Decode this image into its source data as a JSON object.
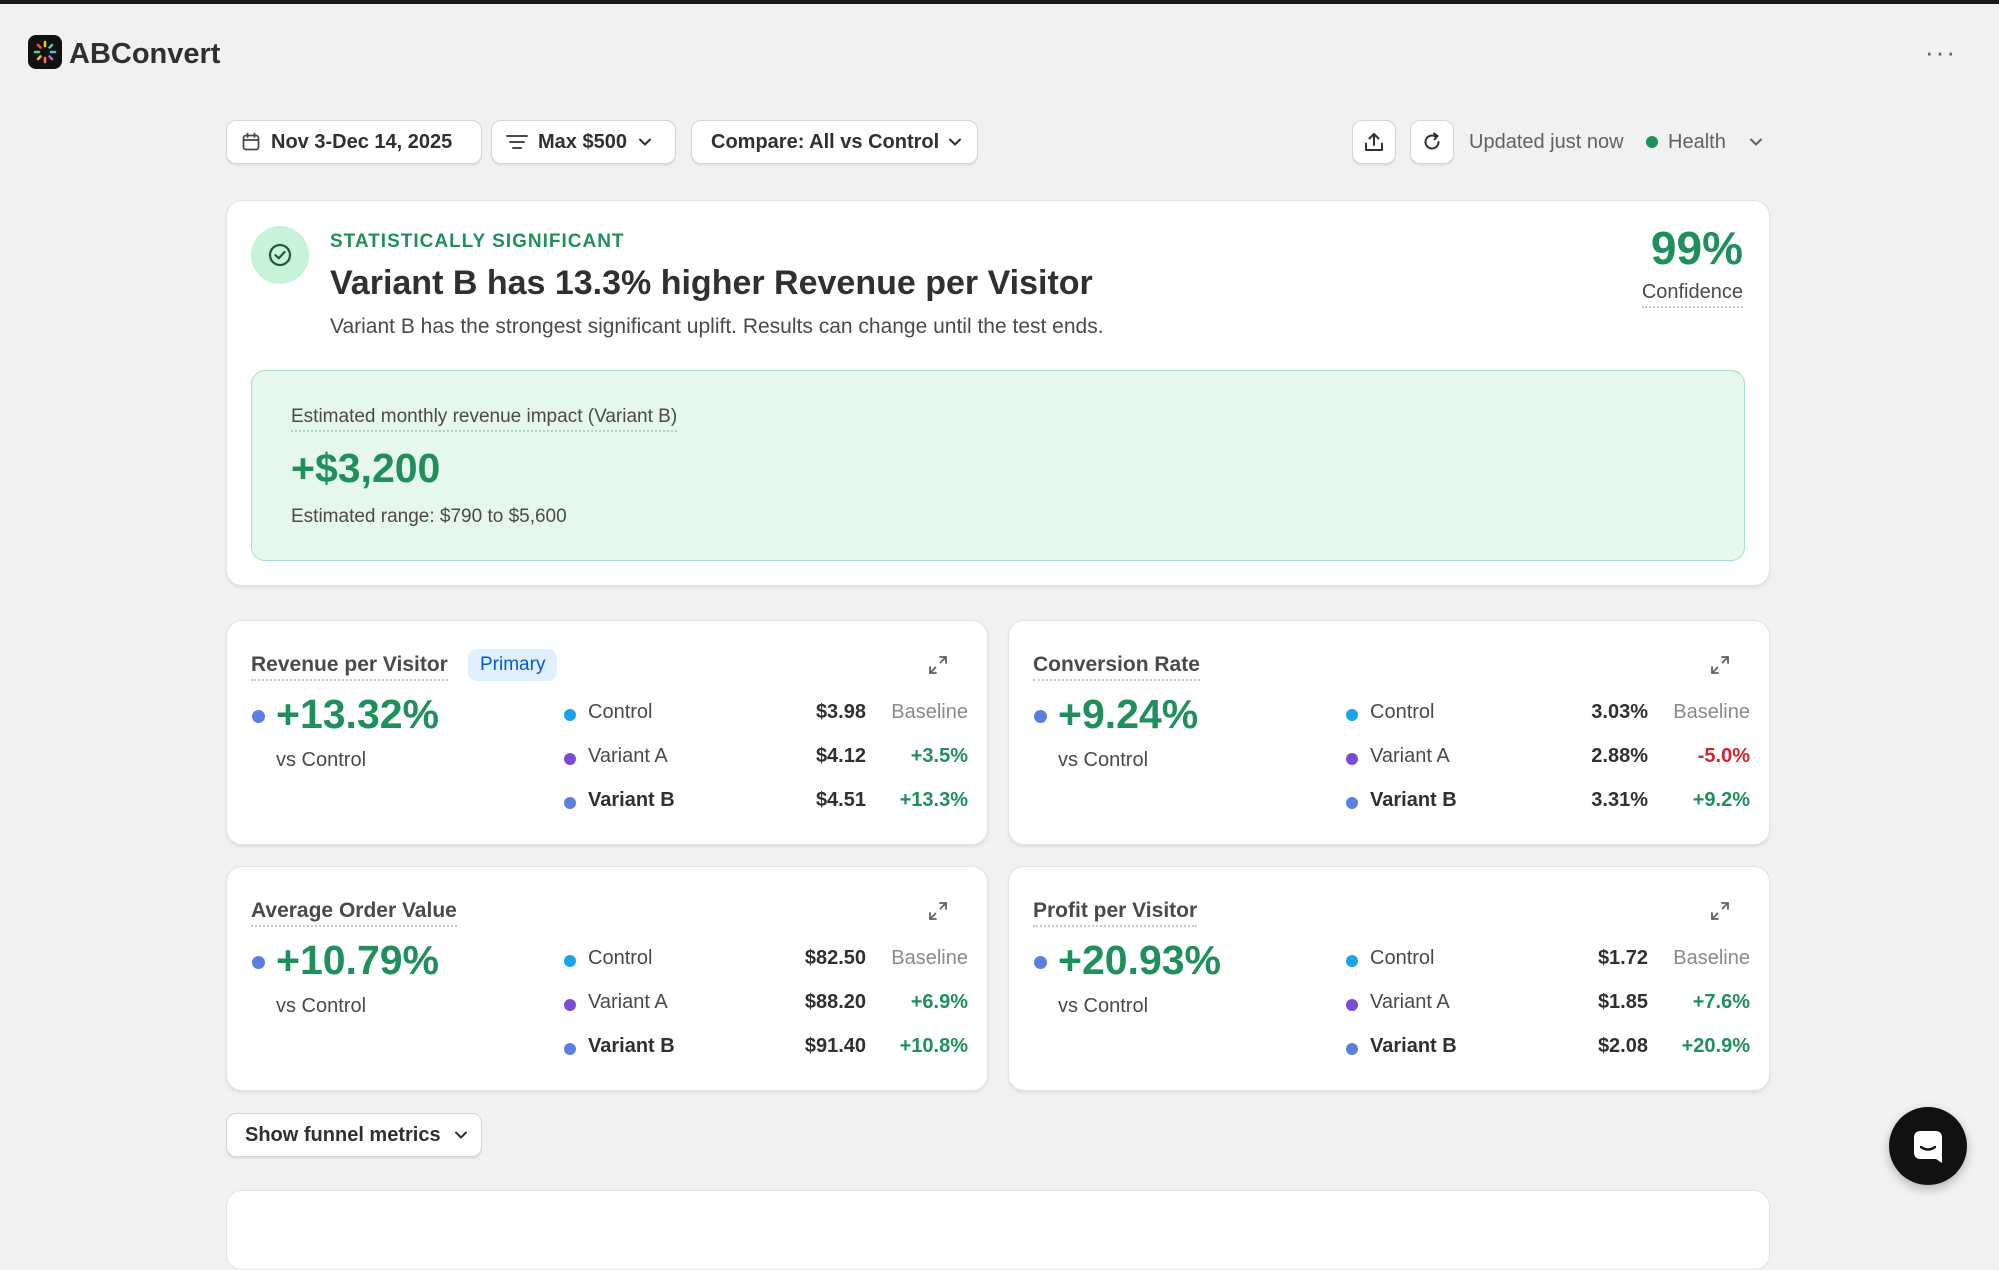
{
  "app": {
    "title": "ABConvert",
    "more_label": "···"
  },
  "toolbar": {
    "date_range": "Nov 3-Dec 14, 2025",
    "filter": "Max $500",
    "compare": "Compare: All vs Control",
    "updated": "Updated just now",
    "health": "Health"
  },
  "hero": {
    "label": "STATISTICALLY SIGNIFICANT",
    "title": "Variant B has 13.3% higher Revenue per Visitor",
    "subtitle": "Variant B has the strongest significant uplift. Results can change until the test ends.",
    "confidence_value": "99%",
    "confidence_label": "Confidence",
    "impact_label": "Estimated monthly revenue impact (Variant B)",
    "impact_value": "+$3,200",
    "impact_range": "Estimated range: $790 to $5,600"
  },
  "colors": {
    "control": "#1aa3e8",
    "variant_a": "#7b4bd6",
    "variant_b": "#5b7fe0",
    "positive": "#1f8f5c",
    "negative": "#d1242f"
  },
  "metrics": {
    "rpv": {
      "title": "Revenue per Visitor",
      "badge": "Primary",
      "big": "+13.32%",
      "vs": "vs Control",
      "rows": [
        {
          "name": "Control",
          "value": "$3.98",
          "delta": "Baseline"
        },
        {
          "name": "Variant A",
          "value": "$4.12",
          "delta": "+3.5%"
        },
        {
          "name": "Variant B",
          "value": "$4.51",
          "delta": "+13.3%"
        }
      ]
    },
    "cr": {
      "title": "Conversion Rate",
      "big": "+9.24%",
      "vs": "vs Control",
      "rows": [
        {
          "name": "Control",
          "value": "3.03%",
          "delta": "Baseline"
        },
        {
          "name": "Variant A",
          "value": "2.88%",
          "delta": "-5.0%"
        },
        {
          "name": "Variant B",
          "value": "3.31%",
          "delta": "+9.2%"
        }
      ]
    },
    "aov": {
      "title": "Average Order Value",
      "big": "+10.79%",
      "vs": "vs Control",
      "rows": [
        {
          "name": "Control",
          "value": "$82.50",
          "delta": "Baseline"
        },
        {
          "name": "Variant A",
          "value": "$88.20",
          "delta": "+6.9%"
        },
        {
          "name": "Variant B",
          "value": "$91.40",
          "delta": "+10.8%"
        }
      ]
    },
    "ppv": {
      "title": "Profit per Visitor",
      "big": "+20.93%",
      "vs": "vs Control",
      "rows": [
        {
          "name": "Control",
          "value": "$1.72",
          "delta": "Baseline"
        },
        {
          "name": "Variant A",
          "value": "$1.85",
          "delta": "+7.6%"
        },
        {
          "name": "Variant B",
          "value": "$2.08",
          "delta": "+20.9%"
        }
      ]
    }
  },
  "funnel": {
    "label": "Show funnel metrics"
  }
}
